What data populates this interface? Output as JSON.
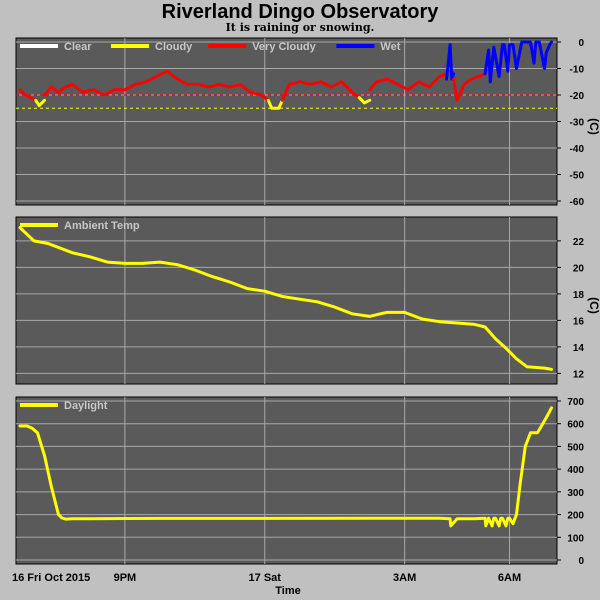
{
  "title": "Riverland Dingo Observatory",
  "subtitle": "It is raining or snowing.",
  "x_axis": {
    "start_label": "16 Fri Oct 2015",
    "label": "Time",
    "ticks": [
      {
        "label": "9PM",
        "hours": 3
      },
      {
        "label": "17 Sat",
        "hours": 7
      },
      {
        "label": "3AM",
        "hours": 11
      },
      {
        "label": "6AM",
        "hours": 14
      }
    ],
    "range_hours": [
      0,
      15.3
    ]
  },
  "colors": {
    "background": "#c0c0c0",
    "plot_background": "#5a5a5a",
    "grid": "#a8a8a8",
    "clear": "#ffffff",
    "cloudy": "#ffff00",
    "very_cloudy": "#ff0000",
    "wet": "#0000ff",
    "threshold": "#ffff00",
    "threshold_red": "#ff0000"
  },
  "chart_data": [
    {
      "type": "line",
      "id": "cloud",
      "legend": [
        {
          "name": "Clear",
          "color": "#ffffff"
        },
        {
          "name": "Cloudy",
          "color": "#ffff00"
        },
        {
          "name": "Very Cloudy",
          "color": "#ff0000"
        },
        {
          "name": "Wet",
          "color": "#0000ff"
        }
      ],
      "ylabel": "(C)",
      "ylim": [
        -60,
        0
      ],
      "yticks": [
        0,
        -10,
        -20,
        -30,
        -40,
        -50,
        -60
      ],
      "grid": true,
      "thresholds": [
        {
          "value": -20,
          "color": "#ff0000"
        },
        {
          "value": -25,
          "color": "#ffff00"
        }
      ],
      "segments": [
        {
          "condition": "Very Cloudy",
          "color": "#ff0000",
          "x": [
            0,
            0.15,
            0.3,
            0.45
          ],
          "y": [
            -18,
            -20,
            -21,
            -22
          ]
        },
        {
          "condition": "Cloudy",
          "color": "#ffff00",
          "x": [
            0.45,
            0.55,
            0.7
          ],
          "y": [
            -22,
            -24,
            -22
          ]
        },
        {
          "condition": "Very Cloudy",
          "color": "#ff0000",
          "x": [
            0.7,
            0.9,
            1.1,
            1.3,
            1.5,
            1.8,
            2.1,
            2.4,
            2.7,
            3.0,
            3.3,
            3.6,
            3.9,
            4.2,
            4.5,
            4.8,
            5.1,
            5.4,
            5.7,
            6.0,
            6.3,
            6.6,
            6.9,
            7.1
          ],
          "y": [
            -20,
            -17,
            -19,
            -17,
            -16,
            -19,
            -18,
            -20,
            -18,
            -18,
            -16,
            -15,
            -13,
            -11,
            -14,
            -16,
            -16,
            -17,
            -16,
            -17,
            -16,
            -19,
            -20,
            -22
          ]
        },
        {
          "condition": "Cloudy",
          "color": "#ffff00",
          "x": [
            7.1,
            7.2,
            7.4,
            7.5
          ],
          "y": [
            -22,
            -25,
            -25,
            -22
          ]
        },
        {
          "condition": "Very Cloudy",
          "color": "#ff0000",
          "x": [
            7.5,
            7.7,
            8.0,
            8.3,
            8.6,
            8.9,
            9.2,
            9.5,
            9.7
          ],
          "y": [
            -22,
            -16,
            -15,
            -16,
            -15,
            -17,
            -15,
            -19,
            -21
          ]
        },
        {
          "condition": "Cloudy",
          "color": "#ffff00",
          "x": [
            9.7,
            9.85,
            10.0
          ],
          "y": [
            -21,
            -23,
            -22
          ]
        },
        {
          "condition": "Very Cloudy",
          "color": "#ff0000",
          "x": [
            10.0,
            10.2,
            10.5,
            10.8,
            11.1,
            11.4,
            11.7,
            12.0,
            12.2
          ],
          "y": [
            -18,
            -15,
            -14,
            -16,
            -18,
            -15,
            -17,
            -13,
            -12
          ]
        },
        {
          "condition": "Wet",
          "color": "#0000ff",
          "x": [
            12.2,
            12.3,
            12.35,
            12.4
          ],
          "y": [
            -14,
            -1,
            -14,
            -12
          ]
        },
        {
          "condition": "Very Cloudy",
          "color": "#ff0000",
          "x": [
            12.4,
            12.5,
            12.7,
            12.9,
            13.1,
            13.3
          ],
          "y": [
            -14,
            -22,
            -16,
            -14,
            -13,
            -12
          ]
        },
        {
          "condition": "Wet",
          "color": "#0000ff",
          "x": [
            13.3,
            13.4,
            13.45,
            13.55,
            13.7,
            13.8,
            13.85,
            13.95,
            14.0,
            14.1,
            14.2,
            14.35,
            14.5,
            14.6,
            14.7,
            14.75,
            14.85,
            15.0,
            15.05,
            15.15,
            15.2
          ],
          "y": [
            -12,
            -3,
            -15,
            -2,
            -13,
            -1,
            -1,
            -11,
            -1,
            -1,
            -10,
            0,
            0,
            0,
            -8,
            0,
            0,
            -10,
            -4,
            -1,
            0
          ]
        }
      ]
    },
    {
      "type": "line",
      "id": "ambient",
      "legend": [
        {
          "name": "Ambient Temp",
          "color": "#ffff00"
        }
      ],
      "ylabel": "(C)",
      "ylim": [
        11.5,
        23.5
      ],
      "yticks": [
        12,
        14,
        16,
        18,
        20,
        22
      ],
      "grid": true,
      "series": [
        {
          "name": "Ambient Temp",
          "color": "#ffff00",
          "x": [
            0,
            0.4,
            0.8,
            1.5,
            2.0,
            2.5,
            3.0,
            3.5,
            4.0,
            4.5,
            5.0,
            5.5,
            6.0,
            6.5,
            7.0,
            7.5,
            8.0,
            8.5,
            9.0,
            9.5,
            10.0,
            10.3,
            10.5,
            11.0,
            11.5,
            12.0,
            12.5,
            13.0,
            13.3,
            13.6,
            13.9,
            14.2,
            14.5,
            15.0,
            15.2
          ],
          "y": [
            23.0,
            22.0,
            21.8,
            21.1,
            20.8,
            20.4,
            20.3,
            20.3,
            20.4,
            20.2,
            19.8,
            19.3,
            18.9,
            18.4,
            18.2,
            17.8,
            17.6,
            17.4,
            17.0,
            16.5,
            16.3,
            16.5,
            16.6,
            16.6,
            16.1,
            15.9,
            15.8,
            15.7,
            15.5,
            14.6,
            13.9,
            13.1,
            12.5,
            12.4,
            12.3
          ]
        }
      ]
    },
    {
      "type": "line",
      "id": "daylight",
      "legend": [
        {
          "name": "Daylight",
          "color": "#ffff00"
        }
      ],
      "ylabel": "",
      "ylim": [
        0,
        700
      ],
      "yticks": [
        0,
        100,
        200,
        300,
        400,
        500,
        600,
        700
      ],
      "grid": true,
      "series": [
        {
          "name": "Daylight",
          "color": "#ffff00",
          "x": [
            0,
            0.2,
            0.35,
            0.5,
            0.7,
            0.9,
            1.1,
            1.2,
            1.3,
            1.5,
            2.0,
            4.0,
            7.0,
            10.0,
            12.0,
            12.3,
            12.32,
            12.5,
            13.0,
            13.3,
            13.32,
            13.4,
            13.5,
            13.55,
            13.6,
            13.7,
            13.75,
            13.8,
            13.9,
            13.95,
            14.0,
            14.1,
            14.2,
            14.3,
            14.45,
            14.6,
            14.8,
            14.95,
            15.1,
            15.2
          ],
          "y": [
            590,
            590,
            580,
            560,
            460,
            320,
            200,
            185,
            180,
            182,
            182,
            183,
            183,
            184,
            184,
            182,
            150,
            182,
            182,
            184,
            150,
            184,
            150,
            184,
            184,
            150,
            184,
            184,
            150,
            184,
            184,
            160,
            200,
            330,
            500,
            560,
            560,
            600,
            640,
            670
          ]
        }
      ]
    }
  ]
}
